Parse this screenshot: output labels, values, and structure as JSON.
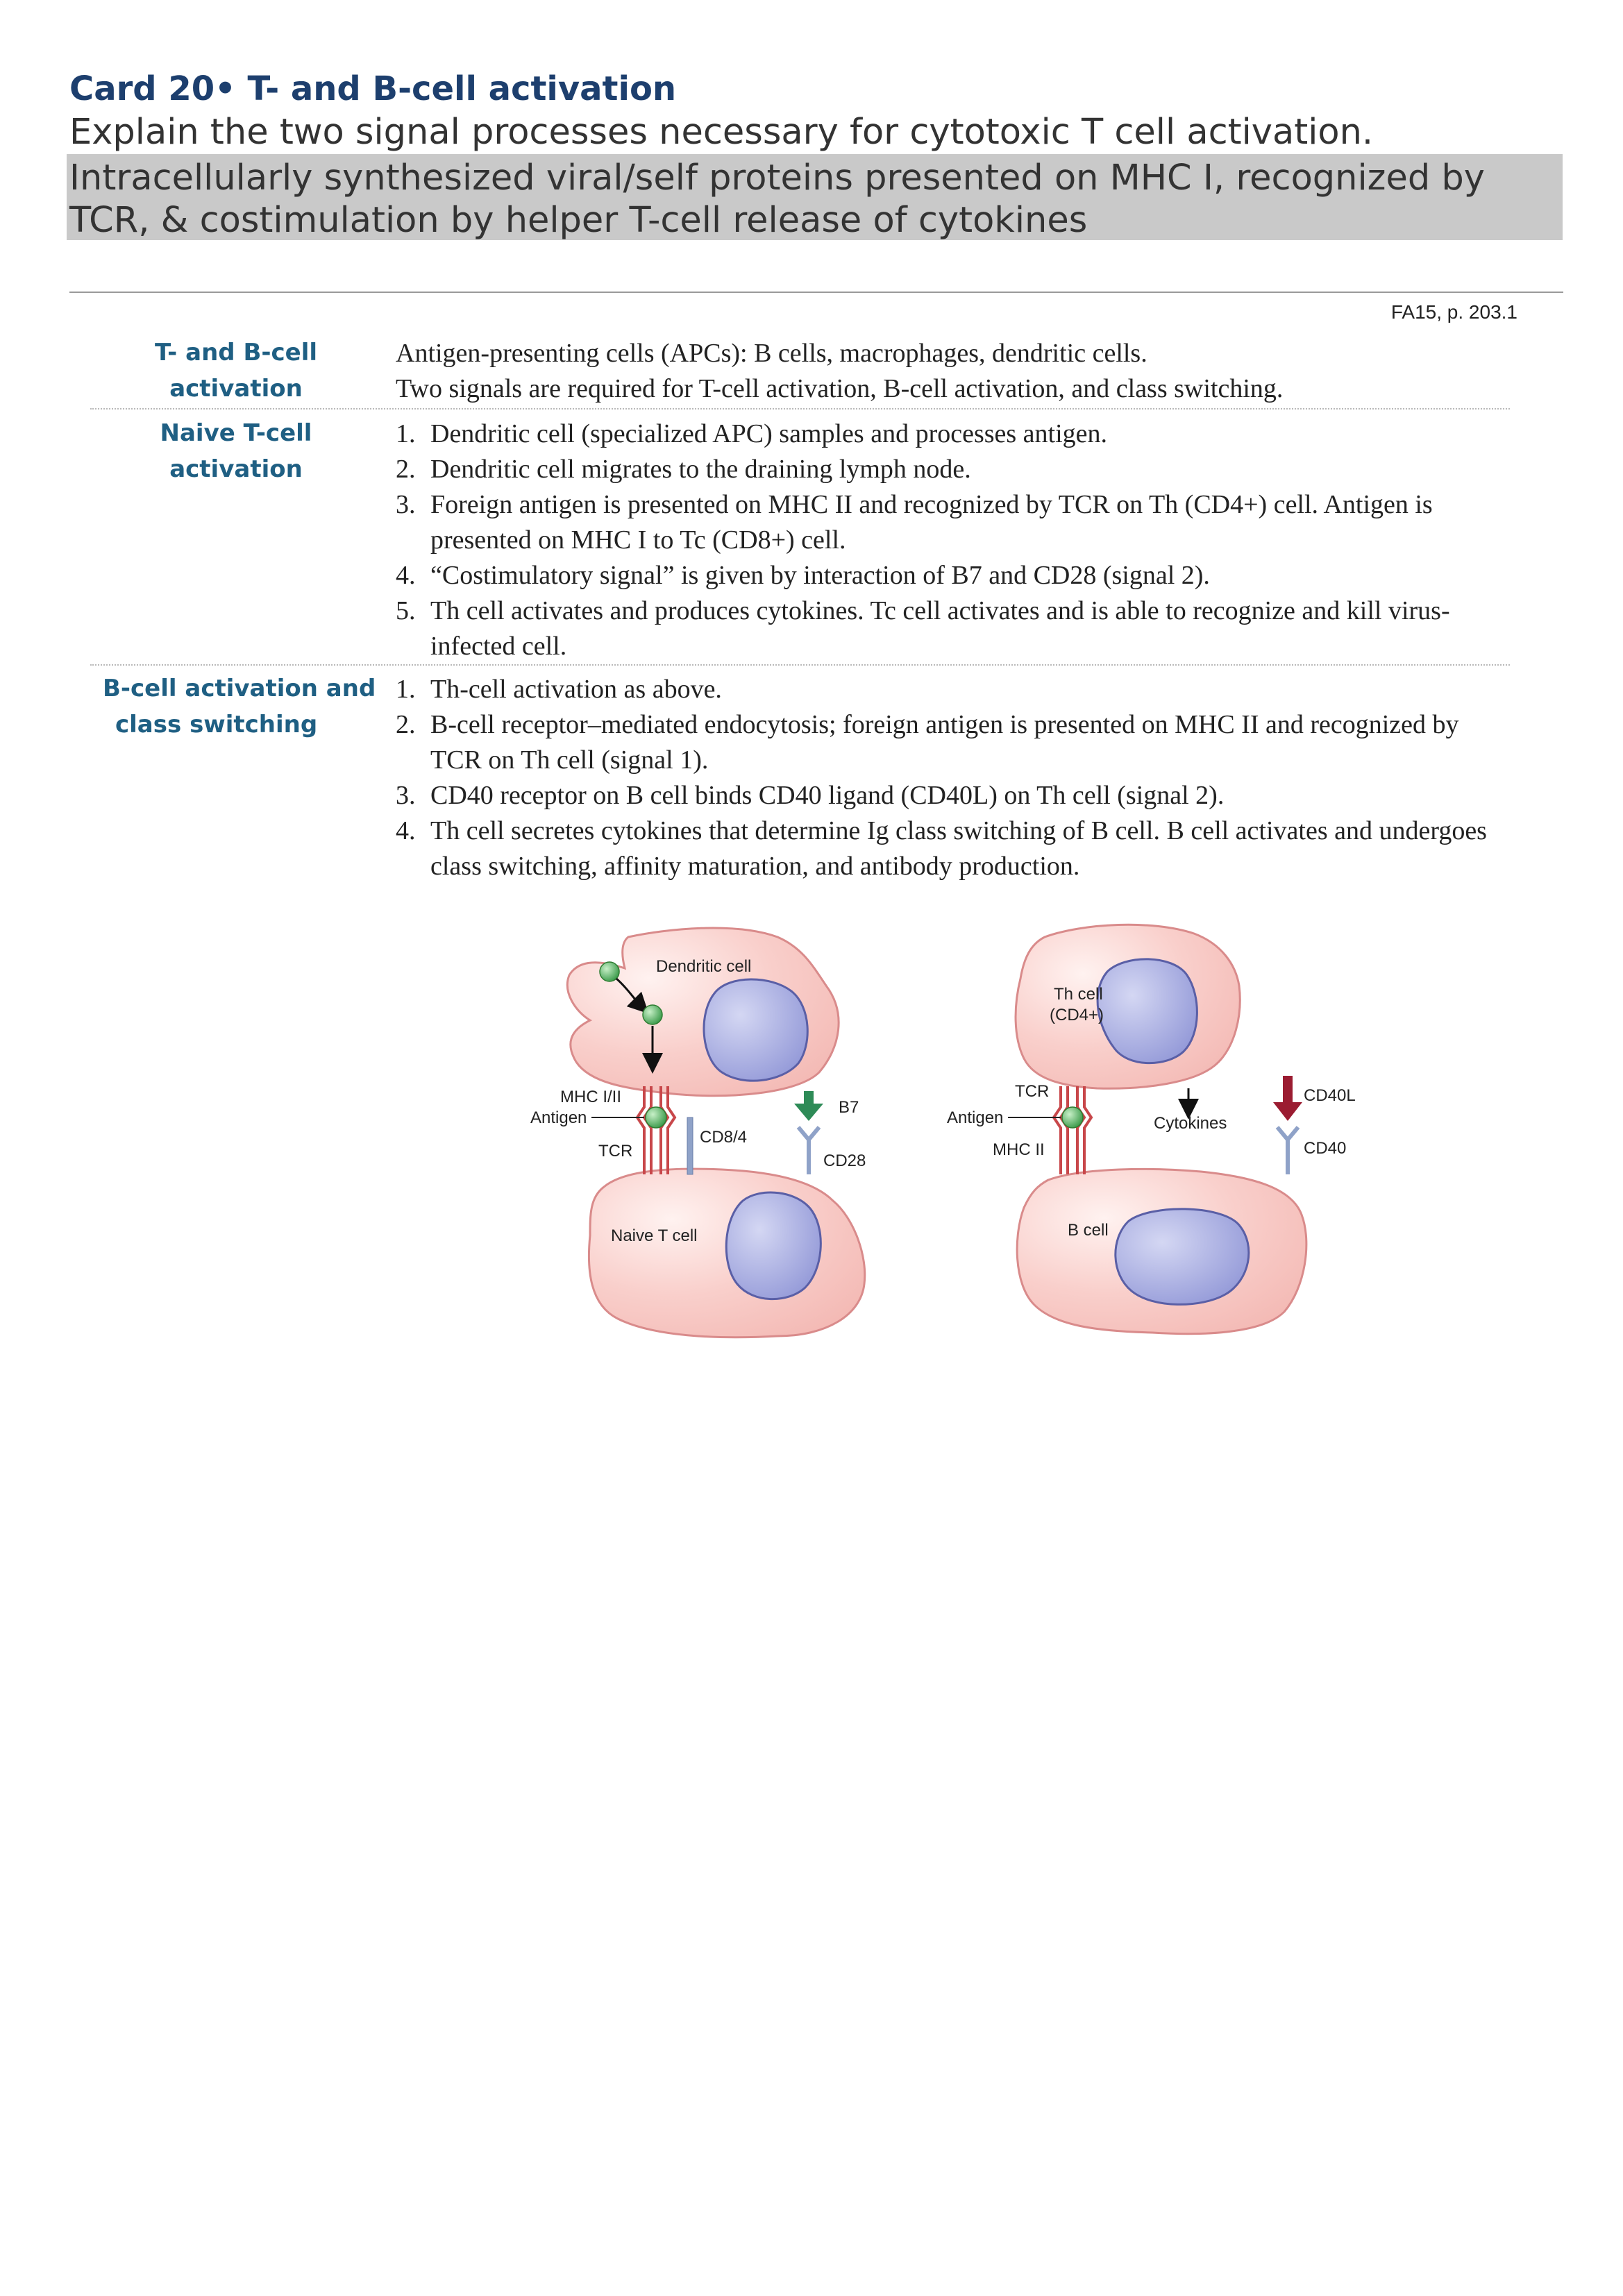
{
  "card": {
    "title": "Card 20• T- and B-cell activation",
    "question": "Explain the two signal processes necessary for cytotoxic T cell activation.",
    "answer": "Intracellularly synthesized viral/self proteins presented on MHC I, recognized by TCR, & costimulation by helper T-cell release of cytokines"
  },
  "reference": "FA15, p. 203.1",
  "sections": [
    {
      "label": "T- and B-cell activation",
      "lines": [
        "Antigen-presenting cells (APCs): B cells, macrophages, dendritic cells.",
        "Two signals are required for T-cell activation, B-cell activation, and class switching."
      ]
    },
    {
      "label": "Naive T-cell activation",
      "items": [
        {
          "num": "1.",
          "text": "Dendritic cell (specialized APC) samples and processes antigen."
        },
        {
          "num": "2.",
          "text": "Dendritic cell migrates to the draining lymph node."
        },
        {
          "num": "3.",
          "text": "Foreign antigen is presented on MHC II and recognized by TCR on Th (CD4+) cell. Antigen is presented on MHC I to Tc (CD8+) cell."
        },
        {
          "num": "4.",
          "text": "“Costimulatory signal” is given by interaction of B7 and CD28 (signal 2)."
        },
        {
          "num": "5.",
          "text": "Th cell activates and produces cytokines. Tc cell activates and is able to recognize and kill virus-infected cell."
        }
      ]
    },
    {
      "label_line1": "B-cell activation and",
      "label_line2": "class switching",
      "items": [
        {
          "num": "1.",
          "text": "Th-cell activation as above."
        },
        {
          "num": "2.",
          "text": "B-cell receptor–mediated endocytosis; foreign antigen is presented on MHC II and recognized by TCR on Th cell (signal 1)."
        },
        {
          "num": "3.",
          "text": "CD40 receptor on B cell binds CD40 ligand (CD40L) on Th cell (signal 2)."
        },
        {
          "num": "4.",
          "text": "Th cell secretes cytokines that determine Ig class switching of B cell. B cell activates and undergoes class switching, affinity maturation, and antibody production."
        }
      ]
    }
  ],
  "diagram": {
    "left": {
      "dendritic_cell": "Dendritic cell",
      "mhc": "MHC I/II",
      "antigen": "Antigen",
      "tcr": "TCR",
      "cd84": "CD8/4",
      "b7": "B7",
      "cd28": "CD28",
      "naive_t_cell": "Naive T cell"
    },
    "right": {
      "th_cell_1": "Th cell",
      "th_cell_2": "(CD4+)",
      "tcr": "TCR",
      "antigen": "Antigen",
      "mhc2": "MHC II",
      "cytokines": "Cytokines",
      "cd40l": "CD40L",
      "cd40": "CD40",
      "b_cell": "B cell"
    },
    "colors": {
      "cell_fill": "#f8c9c5",
      "cell_stroke": "#d98b8b",
      "nucleus_fill": "#a9aee0",
      "nucleus_stroke": "#5a5fa6",
      "mhc_red": "#c8474a",
      "receptor_blue": "#8fa2c8",
      "green": "#2e8b57",
      "darkred": "#9b1c31"
    }
  }
}
